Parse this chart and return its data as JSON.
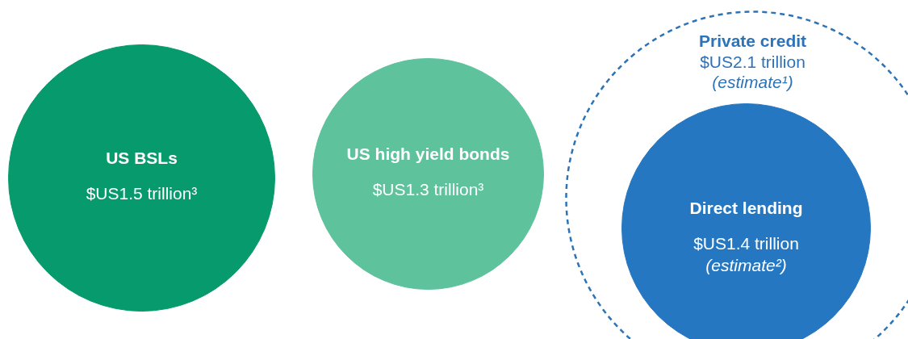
{
  "chart_data": {
    "type": "other",
    "categories": [
      "US BSLs",
      "US high yield bonds",
      "Private credit",
      "Direct lending"
    ],
    "series": [
      {
        "values": [
          1.5,
          1.3,
          null,
          1.4
        ],
        "colors": [
          "#079a6c",
          "#5ec29d",
          null,
          "#2677c1"
        ],
        "line_style": "solid",
        "value_labels": [
          "$US1.5 trillion³",
          "$US1.3 trillion³",
          null,
          "$US1.4 trillion\n(estimate²)"
        ]
      },
      {
        "values": [
          null,
          null,
          2.1,
          null
        ],
        "color": "#2d73b8",
        "line_style": "dashed",
        "value_labels": [
          null,
          null,
          "$US2.1 trillion\n(estimate¹)",
          null
        ]
      }
    ]
  }
}
